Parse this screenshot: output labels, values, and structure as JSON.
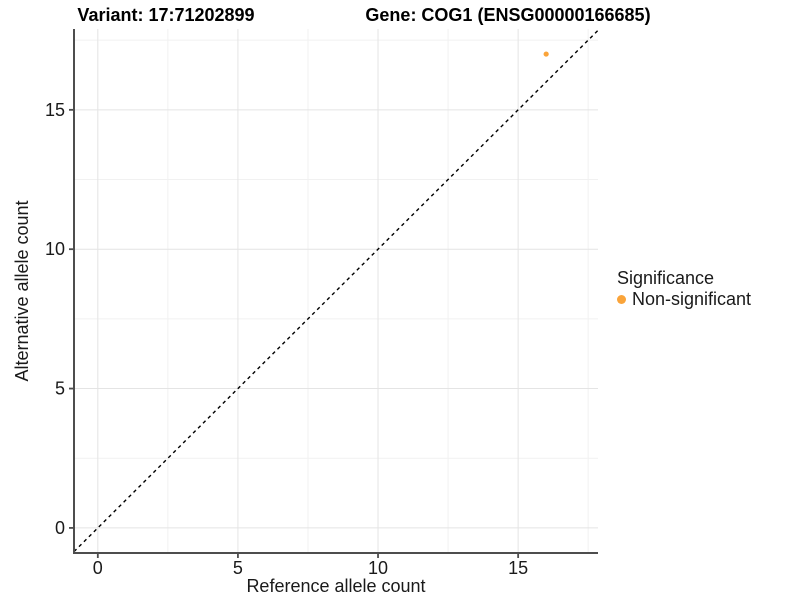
{
  "titles": {
    "variant": "Variant: 17:71202899",
    "gene": "Gene: COG1 (ENSG00000166685)"
  },
  "legend": {
    "title": "Significance",
    "items": [
      {
        "label": "Non-significant",
        "color": "#FAA43A"
      }
    ]
  },
  "chart_data": {
    "type": "scatter",
    "title": "",
    "xlabel": "Reference allele count",
    "ylabel": "Alternative allele count",
    "xlim": [
      -0.85,
      17.85
    ],
    "ylim": [
      -0.9,
      17.9
    ],
    "xticks": [
      0,
      5,
      10,
      15
    ],
    "yticks": [
      0,
      5,
      10,
      15
    ],
    "xminor": [
      2.5,
      7.5,
      12.5,
      17.5
    ],
    "yminor": [
      2.5,
      7.5,
      12.5,
      17.5
    ],
    "grid": {
      "on": true,
      "major_color": "#E4E4E4",
      "minor_color": "#F1F1F1"
    },
    "axis_line_color": "#4D4D4D",
    "tick_label_color": "#1a1a1a",
    "reference_line": {
      "type": "identity",
      "from": -0.85,
      "to": 17.85,
      "dash": "3.5 3.5",
      "color": "#000000",
      "width": 1.4
    },
    "series": [
      {
        "name": "Non-significant",
        "color": "#FAA43A",
        "points": [
          {
            "x": 16,
            "y": 17
          }
        ],
        "point_radius": 2.6
      }
    ],
    "legend_position": "right"
  }
}
